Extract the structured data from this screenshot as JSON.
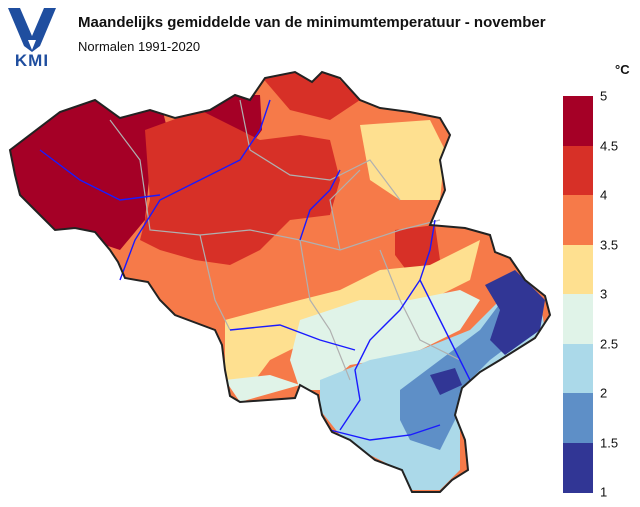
{
  "header": {
    "title": "Maandelijks gemiddelde van de minimumtemperatuur - november",
    "subtitle": "Normalen 1991-2020"
  },
  "logo": {
    "text": "KMI",
    "color": "#1f4e9f"
  },
  "legend": {
    "unit": "°C",
    "ticks": [
      "5",
      "4.5",
      "4",
      "3.5",
      "3",
      "2.5",
      "2",
      "1.5",
      "1"
    ],
    "classes": [
      {
        "range": "4.5-5",
        "color": "#a50026"
      },
      {
        "range": "4-4.5",
        "color": "#d73027"
      },
      {
        "range": "3.5-4",
        "color": "#f67a49"
      },
      {
        "range": "3-3.5",
        "color": "#fee090"
      },
      {
        "range": "2.5-3",
        "color": "#e0f3e8"
      },
      {
        "range": "2-2.5",
        "color": "#abd9e9"
      },
      {
        "range": "1.5-2",
        "color": "#5e8fc7"
      },
      {
        "range": "1-1.5",
        "color": "#313695"
      }
    ]
  },
  "map": {
    "region": "Belgium",
    "colors": {
      "border": "#222222",
      "province_lines": "#b0b0b0",
      "rivers": "#1a1aff"
    }
  }
}
